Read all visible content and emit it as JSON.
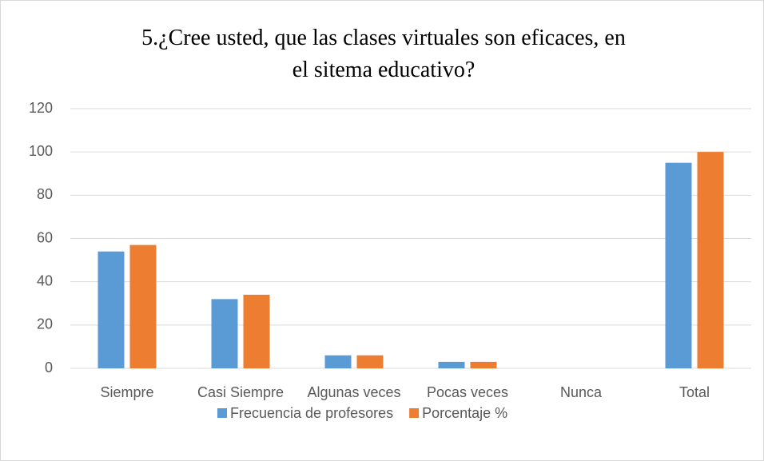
{
  "chart_data": {
    "type": "bar",
    "title": "5.¿Cree usted, que las clases virtuales son eficaces, en el sitema educativo?",
    "categories": [
      "Siempre",
      "Casi Siempre",
      "Algunas veces",
      "Pocas veces",
      "Nunca",
      "Total"
    ],
    "series": [
      {
        "name": "Frecuencia de profesores",
        "color": "#5b9bd5",
        "values": [
          54,
          32,
          6,
          3,
          0,
          95
        ]
      },
      {
        "name": "Porcentaje %",
        "color": "#ed7d31",
        "values": [
          57,
          34,
          6,
          3,
          0,
          100
        ]
      }
    ],
    "ylim": [
      0,
      120
    ],
    "yticks": [
      0,
      20,
      40,
      60,
      80,
      100,
      120
    ],
    "grid": true,
    "legend": "bottom"
  }
}
